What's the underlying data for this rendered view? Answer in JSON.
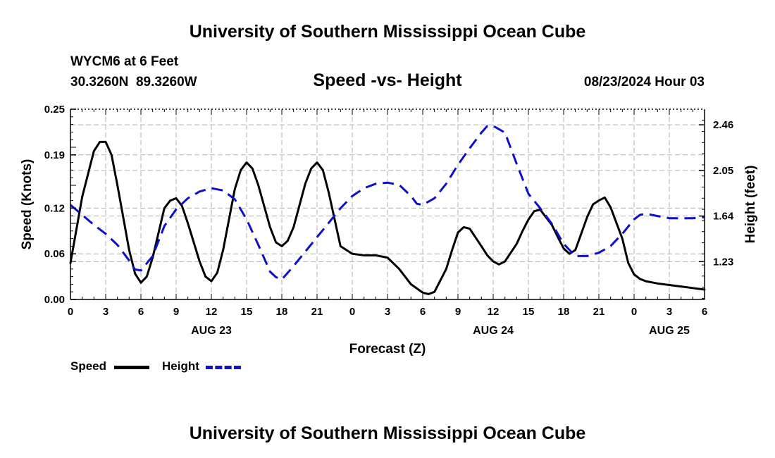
{
  "header": {
    "title": "University of Southern Mississippi Ocean Cube",
    "station": "WYCM6 at 6 Feet",
    "coords": "30.3260N  89.3260W",
    "subtitle": "Speed -vs- Height",
    "datetime": "08/23/2024 Hour 03"
  },
  "footer": {
    "title": "University of Southern Mississippi Ocean Cube"
  },
  "legend": {
    "speed_label": "Speed",
    "height_label": "Height"
  },
  "colors": {
    "speed": "#000000",
    "height": "#1010c8",
    "grid": "#b0b0b0"
  },
  "chart_data": {
    "type": "line",
    "title": "Speed -vs- Height",
    "xlabel": "Forecast (Z)",
    "ylabel": "Speed (Knots)",
    "y2label": "Height (feet)",
    "xlim": [
      0,
      54
    ],
    "ylim": [
      0,
      0.25
    ],
    "y2lim": [
      0.89,
      2.6
    ],
    "xticks": [
      0,
      3,
      6,
      9,
      12,
      15,
      18,
      21,
      24,
      27,
      30,
      33,
      36,
      39,
      42,
      45,
      48,
      51,
      54
    ],
    "xticklabels": [
      "0",
      "3",
      "6",
      "9",
      "12",
      "15",
      "18",
      "21",
      "0",
      "3",
      "6",
      "9",
      "12",
      "15",
      "18",
      "21",
      "0",
      "3",
      "6"
    ],
    "day_labels": [
      {
        "x": 12,
        "label": "AUG 23"
      },
      {
        "x": 36,
        "label": "AUG 24"
      },
      {
        "x": 51,
        "label": "AUG 25"
      }
    ],
    "yticks": [
      0.0,
      0.06,
      0.12,
      0.19,
      0.25
    ],
    "yticklabels": [
      "0.00",
      "0.06",
      "0.12",
      "0.19",
      "0.25"
    ],
    "y2ticks": [
      1.23,
      1.64,
      2.05,
      2.46
    ],
    "y2ticklabels": [
      "1.23",
      "1.64",
      "2.05",
      "2.46"
    ],
    "grid": true,
    "series": [
      {
        "name": "Speed",
        "axis": "left",
        "style": "solid",
        "x": [
          0,
          1,
          2,
          2.5,
          3,
          3.5,
          4,
          5,
          5.5,
          6,
          6.5,
          7,
          8,
          8.5,
          9,
          9.5,
          10,
          11,
          11.5,
          12,
          12.5,
          13,
          14,
          14.5,
          15,
          15.5,
          16,
          17,
          17.5,
          18,
          18.5,
          19,
          20,
          20.5,
          21,
          21.5,
          22,
          23,
          24,
          25,
          26,
          27,
          28,
          29,
          30,
          30.5,
          31,
          32,
          32.5,
          33,
          33.5,
          34,
          35,
          35.5,
          36,
          36.5,
          37,
          38,
          38.5,
          39,
          39.5,
          40,
          41,
          41.5,
          42,
          42.5,
          43,
          44,
          44.5,
          45,
          45.5,
          46,
          47,
          47.5,
          48,
          48.5,
          49,
          50,
          51,
          52,
          53,
          54
        ],
        "values": [
          0.048,
          0.135,
          0.195,
          0.207,
          0.207,
          0.19,
          0.15,
          0.065,
          0.034,
          0.022,
          0.03,
          0.055,
          0.12,
          0.13,
          0.133,
          0.123,
          0.1,
          0.05,
          0.03,
          0.024,
          0.035,
          0.065,
          0.145,
          0.17,
          0.18,
          0.172,
          0.15,
          0.095,
          0.075,
          0.07,
          0.077,
          0.095,
          0.152,
          0.172,
          0.18,
          0.17,
          0.14,
          0.07,
          0.06,
          0.058,
          0.058,
          0.055,
          0.04,
          0.02,
          0.009,
          0.007,
          0.01,
          0.04,
          0.065,
          0.088,
          0.095,
          0.093,
          0.07,
          0.058,
          0.05,
          0.046,
          0.05,
          0.073,
          0.09,
          0.105,
          0.116,
          0.118,
          0.098,
          0.082,
          0.067,
          0.06,
          0.065,
          0.108,
          0.125,
          0.13,
          0.134,
          0.121,
          0.08,
          0.048,
          0.033,
          0.027,
          0.024,
          0.021,
          0.019,
          0.017,
          0.015,
          0.013
        ]
      },
      {
        "name": "Height",
        "axis": "right",
        "style": "dashed",
        "x": [
          0,
          1,
          2,
          3,
          4,
          5,
          5.5,
          6,
          7,
          8,
          9,
          10,
          11,
          12,
          13,
          14,
          15,
          16,
          17,
          17.5,
          18,
          19,
          20,
          21,
          22,
          23,
          24,
          25,
          26,
          27,
          28,
          29,
          29.5,
          30,
          31,
          32,
          33,
          34,
          35,
          35.5,
          36,
          37,
          38,
          39,
          40,
          41,
          42,
          43,
          44,
          45,
          46,
          47,
          48,
          48.5,
          49,
          50,
          51,
          52,
          53,
          54
        ],
        "values": [
          1.74,
          1.65,
          1.56,
          1.48,
          1.38,
          1.24,
          1.16,
          1.15,
          1.28,
          1.55,
          1.7,
          1.8,
          1.86,
          1.89,
          1.87,
          1.79,
          1.61,
          1.38,
          1.14,
          1.09,
          1.07,
          1.19,
          1.32,
          1.45,
          1.58,
          1.71,
          1.82,
          1.89,
          1.93,
          1.94,
          1.92,
          1.82,
          1.75,
          1.74,
          1.8,
          1.93,
          2.1,
          2.25,
          2.39,
          2.45,
          2.45,
          2.39,
          2.11,
          1.84,
          1.71,
          1.57,
          1.39,
          1.28,
          1.28,
          1.31,
          1.37,
          1.48,
          1.61,
          1.65,
          1.66,
          1.64,
          1.62,
          1.62,
          1.62,
          1.63
        ]
      }
    ]
  }
}
